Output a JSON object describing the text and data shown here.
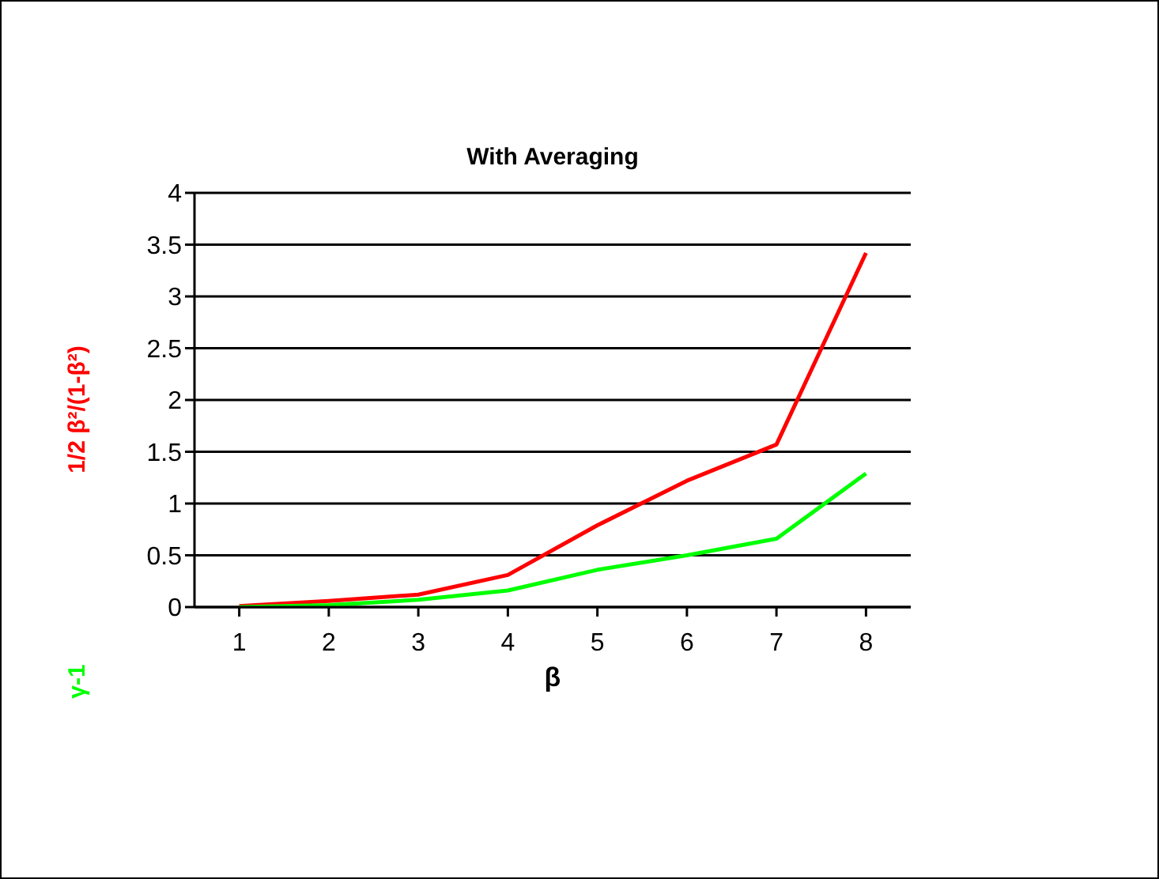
{
  "chart_data": {
    "type": "line",
    "title": "With Averaging",
    "xlabel": "β",
    "categories": [
      "1",
      "2",
      "3",
      "4",
      "5",
      "6",
      "7",
      "8"
    ],
    "series": [
      {
        "name": "1/2 β²/(1-β²)",
        "color": "#ff0000",
        "values": [
          0.01,
          0.06,
          0.12,
          0.31,
          0.79,
          1.22,
          1.57,
          3.42
        ]
      },
      {
        "name": "γ-1",
        "color": "#00ff00",
        "values": [
          0,
          0.02,
          0.07,
          0.16,
          0.36,
          0.5,
          0.66,
          1.29
        ]
      }
    ],
    "ylim": [
      0,
      4
    ],
    "yticks": [
      0,
      0.5,
      1,
      1.5,
      2,
      2.5,
      3,
      3.5,
      4
    ],
    "grid": "y",
    "legend": "left",
    "marker": "none",
    "line_style": "solid"
  }
}
